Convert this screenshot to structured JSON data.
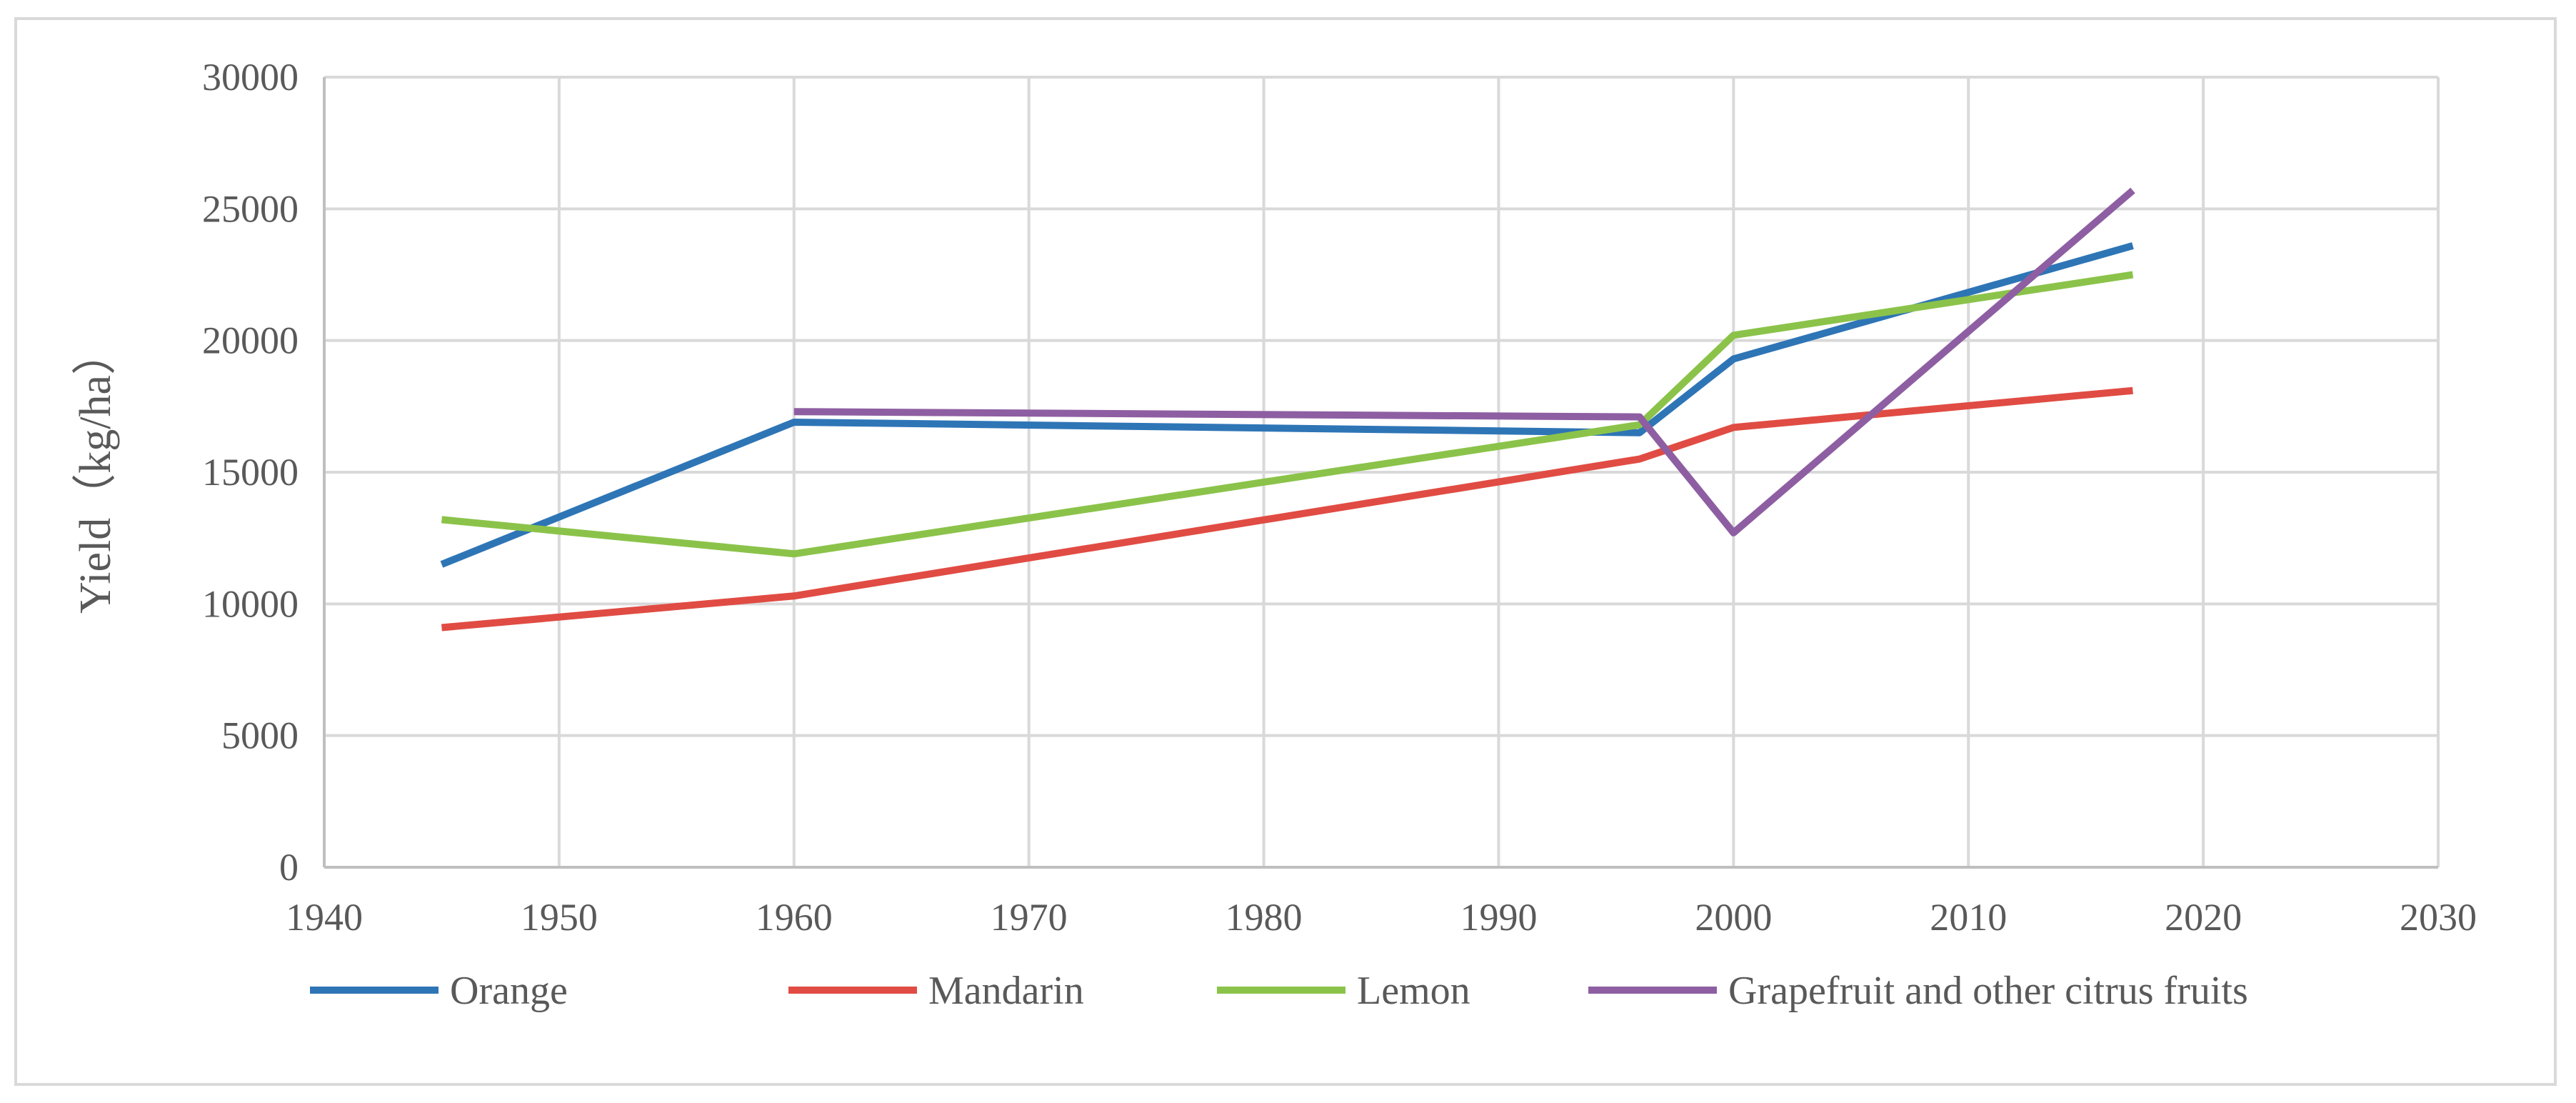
{
  "chart_data": {
    "type": "line",
    "title": "",
    "xlabel": "",
    "ylabel": "Yield（kg/ha）",
    "xlim": [
      1940,
      2030
    ],
    "ylim": [
      0,
      30000
    ],
    "xticks": [
      1940,
      1950,
      1960,
      1970,
      1980,
      1990,
      2000,
      2010,
      2020,
      2030
    ],
    "yticks": [
      0,
      5000,
      10000,
      15000,
      20000,
      25000,
      30000
    ],
    "grid": true,
    "legend_position": "bottom",
    "series": [
      {
        "name": "Orange",
        "color": "#2e75b6",
        "points": [
          [
            1945,
            11500
          ],
          [
            1960,
            16900
          ],
          [
            1996,
            16500
          ],
          [
            2000,
            19300
          ],
          [
            2017,
            23600
          ]
        ]
      },
      {
        "name": "Mandarin",
        "color": "#e04c43",
        "points": [
          [
            1945,
            9100
          ],
          [
            1960,
            10300
          ],
          [
            1996,
            15500
          ],
          [
            2000,
            16700
          ],
          [
            2017,
            18100
          ]
        ]
      },
      {
        "name": "Lemon",
        "color": "#8bc34a",
        "points": [
          [
            1945,
            13200
          ],
          [
            1960,
            11900
          ],
          [
            1996,
            16800
          ],
          [
            2000,
            20200
          ],
          [
            2017,
            22500
          ]
        ]
      },
      {
        "name": "Grapefruit and other citrus fruits",
        "color": "#8e5ea2",
        "points": [
          [
            1960,
            17300
          ],
          [
            1996,
            17100
          ],
          [
            2000,
            12700
          ],
          [
            2017,
            25700
          ]
        ]
      }
    ]
  },
  "colors": {
    "grid": "#d9d9d9",
    "axis": "#bfbfbf",
    "text": "#595959"
  }
}
